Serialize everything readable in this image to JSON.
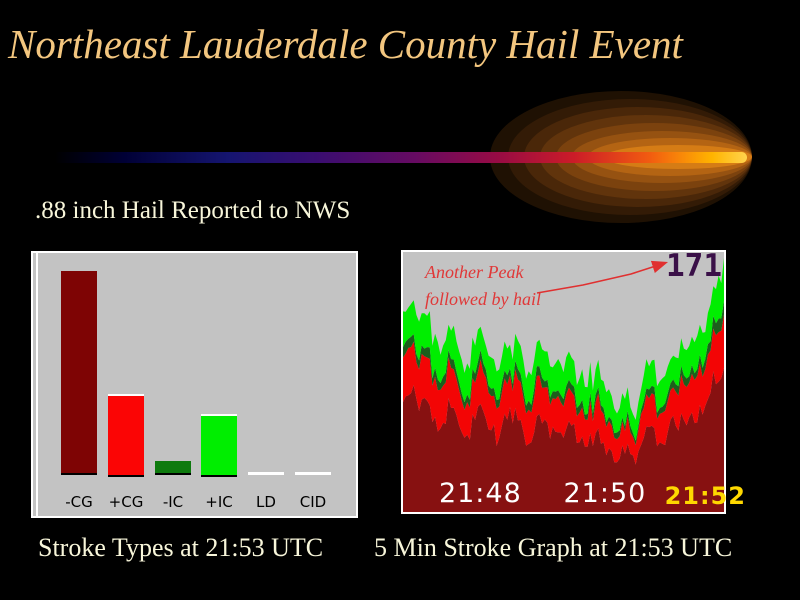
{
  "slide": {
    "title": "Northeast Lauderdale County Hail Event",
    "hail_note": ".88 inch Hail Reported to NWS",
    "caption_left": "Stroke Types at 21:53 UTC",
    "caption_right": "5 Min Stroke Graph at 21:53 UTC"
  },
  "annotation": {
    "line1": "Another Peak",
    "line2": "followed by hail",
    "peak_value": "171"
  },
  "colors": {
    "background": "#000000",
    "title_gold": "#F3C67F",
    "cream_text": "#F8F6DA",
    "panel_gray": "#C3C3C3",
    "annotation_red": "#E03838",
    "peak_purple": "#3A1048",
    "tick_white": "#FFFFFF",
    "tick_yellow": "#FFD800"
  },
  "chart_data": [
    {
      "type": "bar",
      "title": "Stroke Types at 21:53 UTC",
      "categories": [
        "-CG",
        "+CG",
        "-IC",
        "+IC",
        "LD",
        "CID"
      ],
      "values_pct_of_max": [
        100,
        39,
        6,
        29,
        0,
        0
      ],
      "colors": [
        "#7E0404",
        "#FB0505",
        "#0E7A0E",
        "#00EE00",
        "#FFFFFF",
        "#FFFFFF"
      ],
      "xlabel": "",
      "ylabel": "",
      "note": "no numeric axis shown; values are bar heights relative to tallest bar (-CG)"
    },
    {
      "type": "area",
      "stacked": true,
      "title": "5 Min Stroke Graph at 21:53 UTC",
      "ylim": [
        0,
        175
      ],
      "peak_label": "171",
      "x_ticks": [
        {
          "label": "21:48",
          "x_pct": 11.2,
          "emphasis": false
        },
        {
          "label": "21:50",
          "x_pct": 50.0,
          "emphasis": false
        },
        {
          "label": "21:52",
          "x_pct": 81.5,
          "emphasis": true
        }
      ],
      "series": [
        {
          "name": "-CG",
          "color": "#871111",
          "values": [
            74,
            80,
            68,
            75,
            64,
            60,
            70,
            58,
            52,
            62,
            68,
            55,
            50,
            62,
            70,
            54,
            47,
            66,
            60,
            54,
            50,
            58,
            47,
            44,
            53,
            47,
            41,
            36,
            46,
            32,
            50,
            58,
            47,
            54,
            58,
            62,
            67,
            72,
            76,
            86,
            97
          ]
        },
        {
          "name": "+CG",
          "color": "#F30505",
          "values": [
            30,
            31,
            28,
            29,
            27,
            25,
            27,
            24,
            22,
            25,
            26,
            23,
            21,
            24,
            26,
            23,
            20,
            26,
            24,
            22,
            21,
            23,
            20,
            18,
            21,
            19,
            17,
            15,
            18,
            13,
            20,
            22,
            19,
            21,
            23,
            24,
            26,
            28,
            30,
            33,
            36
          ]
        },
        {
          "name": "-IC",
          "color": "#1C5F1C",
          "values": [
            7,
            7,
            6,
            7,
            6,
            6,
            6,
            5,
            5,
            6,
            6,
            5,
            5,
            6,
            6,
            5,
            5,
            6,
            5,
            5,
            5,
            5,
            5,
            4,
            5,
            4,
            4,
            4,
            4,
            3,
            5,
            5,
            4,
            5,
            5,
            6,
            6,
            6,
            7,
            8,
            9
          ]
        },
        {
          "name": "+IC",
          "color": "#00EE00",
          "values": [
            24,
            22,
            26,
            21,
            23,
            21,
            19,
            21,
            21,
            19,
            18,
            21,
            20,
            18,
            18,
            20,
            20,
            18,
            19,
            19,
            18,
            18,
            18,
            18,
            17,
            18,
            16,
            15,
            16,
            14,
            17,
            17,
            18,
            18,
            18,
            18,
            19,
            20,
            21,
            23,
            29
          ]
        }
      ]
    }
  ]
}
